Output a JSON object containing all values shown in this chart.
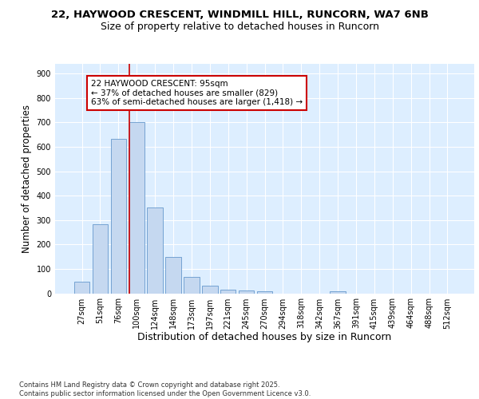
{
  "title_line1": "22, HAYWOOD CRESCENT, WINDMILL HILL, RUNCORN, WA7 6NB",
  "title_line2": "Size of property relative to detached houses in Runcorn",
  "xlabel": "Distribution of detached houses by size in Runcorn",
  "ylabel": "Number of detached properties",
  "categories": [
    "27sqm",
    "51sqm",
    "76sqm",
    "100sqm",
    "124sqm",
    "148sqm",
    "173sqm",
    "197sqm",
    "221sqm",
    "245sqm",
    "270sqm",
    "294sqm",
    "318sqm",
    "342sqm",
    "367sqm",
    "391sqm",
    "415sqm",
    "439sqm",
    "464sqm",
    "488sqm",
    "512sqm"
  ],
  "values": [
    47,
    283,
    632,
    700,
    352,
    148,
    68,
    30,
    15,
    10,
    8,
    0,
    0,
    0,
    8,
    0,
    0,
    0,
    0,
    0,
    0
  ],
  "bar_color": "#c5d8f0",
  "bar_edge_color": "#6699cc",
  "vline_x": 3.0,
  "vline_color": "#cc0000",
  "annotation_text": "22 HAYWOOD CRESCENT: 95sqm\n← 37% of detached houses are smaller (829)\n63% of semi-detached houses are larger (1,418) →",
  "annotation_box_facecolor": "#ffffff",
  "annotation_box_edgecolor": "#cc0000",
  "ylim": [
    0,
    940
  ],
  "yticks": [
    0,
    100,
    200,
    300,
    400,
    500,
    600,
    700,
    800,
    900
  ],
  "fig_bg_color": "#ffffff",
  "plot_bg_color": "#ddeeff",
  "grid_color": "#ffffff",
  "footer_text": "Contains HM Land Registry data © Crown copyright and database right 2025.\nContains public sector information licensed under the Open Government Licence v3.0.",
  "title_fontsize": 9.5,
  "subtitle_fontsize": 9,
  "ylabel_fontsize": 8.5,
  "xlabel_fontsize": 9,
  "tick_fontsize": 7,
  "annotation_fontsize": 7.5,
  "footer_fontsize": 6
}
